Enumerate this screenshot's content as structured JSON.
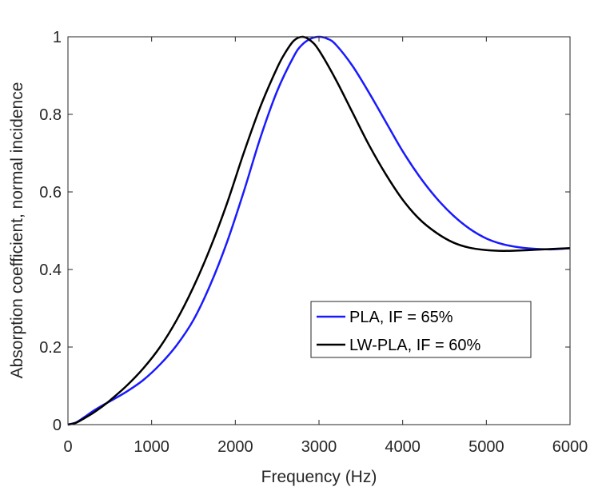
{
  "chart_data": {
    "type": "line",
    "title": "",
    "xlabel": "Frequency (Hz)",
    "ylabel": "Absorption coefficient, normal incidence",
    "xlim": [
      0,
      6000
    ],
    "ylim": [
      0,
      1
    ],
    "xticks": [
      0,
      1000,
      2000,
      3000,
      4000,
      5000,
      6000
    ],
    "xtick_labels": [
      "0",
      "1000",
      "2000",
      "3000",
      "4000",
      "5000",
      "6000"
    ],
    "yticks": [
      0,
      0.2,
      0.4,
      0.6,
      0.8,
      1
    ],
    "ytick_labels": [
      "0",
      "0.2",
      "0.4",
      "0.6",
      "0.8",
      "1"
    ],
    "grid": false,
    "legend_position": "lower-right",
    "series": [
      {
        "name": "PLA, IF = 65%",
        "color": "#1a1aff",
        "x": [
          0,
          100,
          200,
          300,
          400,
          500,
          700,
          900,
          1100,
          1300,
          1500,
          1700,
          1900,
          2100,
          2300,
          2500,
          2700,
          2800,
          2900,
          3000,
          3100,
          3200,
          3400,
          3600,
          3800,
          4000,
          4200,
          4400,
          4600,
          4800,
          5000,
          5200,
          5400,
          5600,
          5800,
          6000
        ],
        "y": [
          0,
          0.006,
          0.02,
          0.035,
          0.048,
          0.06,
          0.085,
          0.115,
          0.155,
          0.205,
          0.27,
          0.36,
          0.47,
          0.6,
          0.74,
          0.86,
          0.95,
          0.98,
          0.995,
          1.0,
          0.995,
          0.98,
          0.925,
          0.855,
          0.78,
          0.705,
          0.64,
          0.585,
          0.54,
          0.505,
          0.48,
          0.465,
          0.457,
          0.453,
          0.452,
          0.455
        ]
      },
      {
        "name": "LW-PLA, IF = 60%",
        "color": "#000000",
        "x": [
          0,
          100,
          200,
          300,
          400,
          500,
          700,
          900,
          1100,
          1300,
          1500,
          1700,
          1900,
          2100,
          2300,
          2500,
          2600,
          2700,
          2800,
          2900,
          3000,
          3200,
          3400,
          3600,
          3800,
          4000,
          4200,
          4400,
          4600,
          4800,
          5000,
          5200,
          5400,
          5600,
          5800,
          6000
        ],
        "y": [
          0,
          0.005,
          0.017,
          0.03,
          0.045,
          0.062,
          0.1,
          0.145,
          0.2,
          0.27,
          0.355,
          0.455,
          0.57,
          0.7,
          0.82,
          0.92,
          0.96,
          0.99,
          1.0,
          0.99,
          0.965,
          0.89,
          0.805,
          0.72,
          0.645,
          0.58,
          0.53,
          0.495,
          0.47,
          0.456,
          0.45,
          0.448,
          0.449,
          0.451,
          0.453,
          0.455
        ]
      }
    ]
  }
}
